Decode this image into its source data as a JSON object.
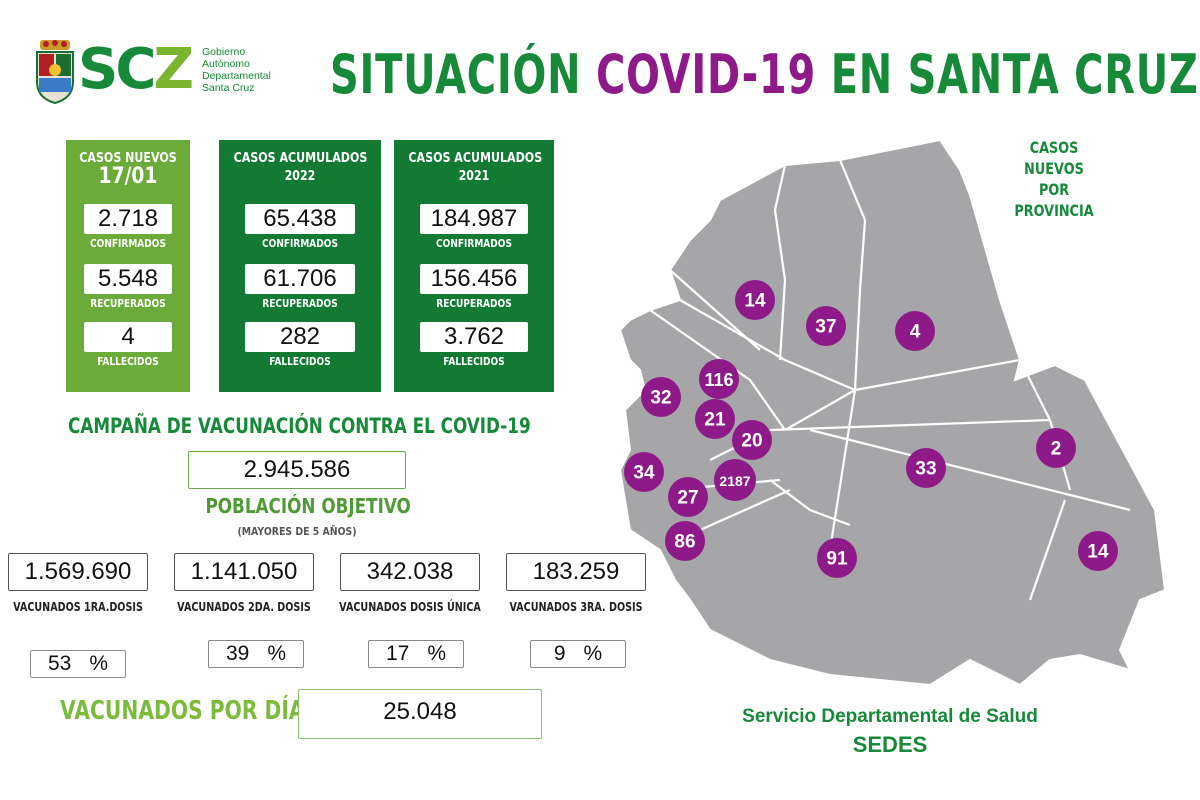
{
  "logo": {
    "text_s": "SC",
    "text_z": "Z",
    "subtitle": [
      "Gobierno",
      "Autónomo",
      "Departamental",
      "Santa Cruz"
    ]
  },
  "title": {
    "part1": "SITUACIÓN",
    "part2": "COVID-19",
    "part3": "EN SANTA CRUZ"
  },
  "cards": {
    "new": {
      "heading": "CASOS NUEVOS",
      "date": "17/01",
      "confirmed": "2.718",
      "confirmed_label": "CONFIRMADOS",
      "recovered": "5.548",
      "recovered_label": "RECUPERADOS",
      "deceased": "4",
      "deceased_label": "FALLECIDOS"
    },
    "y2022": {
      "heading": "CASOS ACUMULADOS",
      "year": "2022",
      "confirmed": "65.438",
      "confirmed_label": "CONFIRMADOS",
      "recovered": "61.706",
      "recovered_label": "RECUPERADOS",
      "deceased": "282",
      "deceased_label": "FALLECIDOS"
    },
    "y2021": {
      "heading": "CASOS ACUMULADOS",
      "year": "2021",
      "confirmed": "184.987",
      "confirmed_label": "CONFIRMADOS",
      "recovered": "156.456",
      "recovered_label": "RECUPERADOS",
      "deceased": "3.762",
      "deceased_label": "FALLECIDOS"
    }
  },
  "vaccination": {
    "title": "CAMPAÑA DE VACUNACIÓN CONTRA EL COVID-19",
    "target_population": "2.945.586",
    "target_label": "POBLACIÓN OBJETIVO",
    "target_sub": "(MAYORES DE 5 AÑOS)",
    "doses": [
      {
        "value": "1.569.690",
        "label": "VACUNADOS 1RA.DOSIS",
        "percent": "53",
        "unit": "%"
      },
      {
        "value": "1.141.050",
        "label": "VACUNADOS 2DA. DOSIS",
        "percent": "39",
        "unit": "%"
      },
      {
        "value": "342.038",
        "label": "VACUNADOS DOSIS ÚNICA",
        "percent": "17",
        "unit": "%"
      },
      {
        "value": "183.259",
        "label": "VACUNADOS 3RA. DOSIS",
        "percent": "9",
        "unit": "%"
      }
    ],
    "per_day_label": "VACUNADOS POR DÍA",
    "per_day_value": "25.048"
  },
  "map": {
    "title_line1": "CASOS NUEVOS",
    "title_line2": "POR PROVINCIA",
    "map_fill": "#a6a6a8",
    "bubble_color": "#8e1a8a",
    "provinces": [
      {
        "value": "14"
      },
      {
        "value": "37"
      },
      {
        "value": "4"
      },
      {
        "value": "116"
      },
      {
        "value": "32"
      },
      {
        "value": "21"
      },
      {
        "value": "20"
      },
      {
        "value": "34"
      },
      {
        "value": "2187"
      },
      {
        "value": "27"
      },
      {
        "value": "33"
      },
      {
        "value": "2"
      },
      {
        "value": "86"
      },
      {
        "value": "91"
      },
      {
        "value": "14"
      }
    ]
  },
  "footer": {
    "line1": "Servicio Departamental de Salud",
    "line2": "SEDES"
  },
  "colors": {
    "dark_green": "#137a34",
    "light_green": "#6bab3a",
    "purple": "#8e1a8a"
  }
}
